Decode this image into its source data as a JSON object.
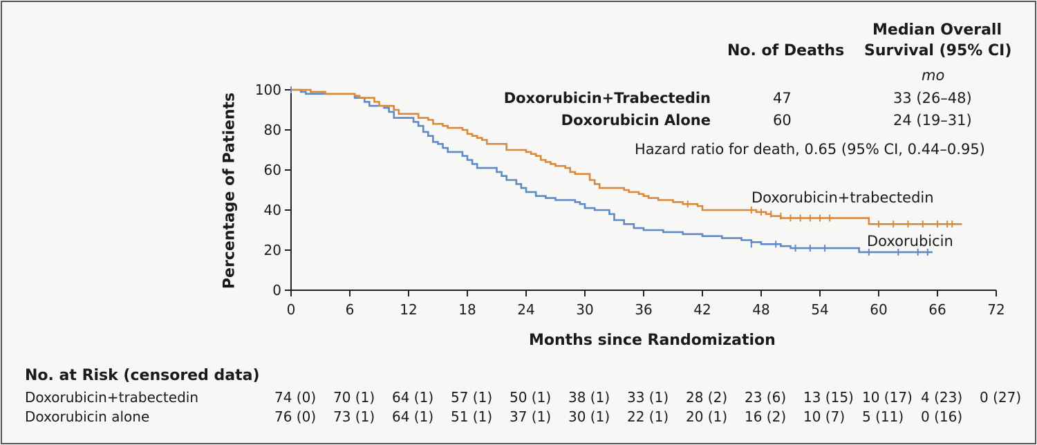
{
  "chart_data": {
    "type": "line",
    "xlabel": "Months since Randomization",
    "ylabel": "Percentage of Patients",
    "xlim": [
      0,
      72
    ],
    "ylim": [
      0,
      100
    ],
    "x_ticks": [
      "0",
      "6",
      "12",
      "18",
      "24",
      "30",
      "36",
      "42",
      "48",
      "54",
      "60",
      "66",
      "72"
    ],
    "y_ticks": [
      "0",
      "20",
      "40",
      "60",
      "80",
      "100"
    ],
    "series": [
      {
        "name": "Doxorubicin+trabectedin",
        "color": "#d8893a",
        "points": [
          [
            0,
            100
          ],
          [
            2,
            99
          ],
          [
            3.5,
            98
          ],
          [
            6.5,
            97
          ],
          [
            7,
            96
          ],
          [
            8.5,
            94
          ],
          [
            9,
            92
          ],
          [
            10.5,
            90
          ],
          [
            11,
            88
          ],
          [
            13,
            86
          ],
          [
            14,
            85
          ],
          [
            14.5,
            83
          ],
          [
            15.5,
            82
          ],
          [
            16,
            81
          ],
          [
            17.5,
            80
          ],
          [
            18,
            78
          ],
          [
            18.5,
            77
          ],
          [
            19,
            76
          ],
          [
            19.5,
            75
          ],
          [
            20,
            73
          ],
          [
            21.5,
            73
          ],
          [
            22,
            70
          ],
          [
            24,
            69
          ],
          [
            24.5,
            68
          ],
          [
            25,
            67
          ],
          [
            25.5,
            65
          ],
          [
            26,
            64
          ],
          [
            26.5,
            63
          ],
          [
            27,
            62
          ],
          [
            28,
            61
          ],
          [
            28.5,
            59
          ],
          [
            29,
            58
          ],
          [
            30.5,
            55
          ],
          [
            31,
            53
          ],
          [
            31.5,
            51
          ],
          [
            34,
            50
          ],
          [
            34.5,
            49
          ],
          [
            35.5,
            48
          ],
          [
            36,
            47
          ],
          [
            36.5,
            46
          ],
          [
            37.5,
            45
          ],
          [
            39,
            44
          ],
          [
            40,
            43
          ],
          [
            41.5,
            42
          ],
          [
            42,
            40
          ],
          [
            47.5,
            39
          ],
          [
            48.5,
            38
          ],
          [
            49,
            37
          ],
          [
            50,
            36
          ],
          [
            59,
            33
          ],
          [
            68.5,
            33
          ]
        ],
        "censored": [
          [
            40.5,
            43
          ],
          [
            47,
            40
          ],
          [
            48,
            39
          ],
          [
            49,
            38
          ],
          [
            50,
            37
          ],
          [
            51,
            36
          ],
          [
            52,
            36
          ],
          [
            53,
            36
          ],
          [
            54,
            36
          ],
          [
            55,
            36
          ],
          [
            60,
            33
          ],
          [
            61.5,
            33
          ],
          [
            63,
            33
          ],
          [
            64.5,
            33
          ],
          [
            66,
            33
          ],
          [
            67,
            33
          ],
          [
            67.5,
            33
          ]
        ]
      },
      {
        "name": "Doxorubicin",
        "color": "#5f89c6",
        "points": [
          [
            0,
            100
          ],
          [
            1,
            99
          ],
          [
            1.5,
            98
          ],
          [
            6.5,
            96
          ],
          [
            7.5,
            94
          ],
          [
            8,
            92
          ],
          [
            9.5,
            91
          ],
          [
            10,
            89
          ],
          [
            10.5,
            86
          ],
          [
            12.5,
            84
          ],
          [
            13,
            82
          ],
          [
            13.5,
            79
          ],
          [
            14,
            77
          ],
          [
            14.5,
            74
          ],
          [
            15,
            73
          ],
          [
            15.5,
            71
          ],
          [
            16,
            69
          ],
          [
            17.5,
            67
          ],
          [
            18,
            65
          ],
          [
            18.5,
            63
          ],
          [
            19,
            61
          ],
          [
            21,
            59
          ],
          [
            21.5,
            57
          ],
          [
            22,
            55
          ],
          [
            23,
            53
          ],
          [
            23.5,
            51
          ],
          [
            24,
            49
          ],
          [
            25,
            47
          ],
          [
            26,
            46
          ],
          [
            27,
            45
          ],
          [
            29,
            44
          ],
          [
            29.5,
            43
          ],
          [
            30,
            41
          ],
          [
            31,
            40
          ],
          [
            32.5,
            38
          ],
          [
            33,
            35
          ],
          [
            34,
            33
          ],
          [
            35,
            31
          ],
          [
            36,
            30
          ],
          [
            38,
            29
          ],
          [
            40,
            28
          ],
          [
            42,
            27
          ],
          [
            44,
            26
          ],
          [
            46,
            25
          ],
          [
            47,
            24
          ],
          [
            48,
            23
          ],
          [
            50,
            22
          ],
          [
            51,
            21
          ],
          [
            58,
            19
          ],
          [
            65.5,
            19
          ]
        ],
        "censored": [
          [
            0,
            100
          ],
          [
            47,
            23
          ],
          [
            49.5,
            23
          ],
          [
            51.5,
            21
          ],
          [
            53,
            21
          ],
          [
            54.5,
            21
          ],
          [
            59,
            19
          ],
          [
            62,
            19
          ],
          [
            64,
            19
          ],
          [
            65,
            19
          ]
        ]
      }
    ],
    "series_labels": [
      "Doxorubicin+trabectedin",
      "Doxorubicin"
    ]
  },
  "summary": {
    "col_deaths": "No. of Deaths",
    "col_median_line1": "Median Overall",
    "col_median_line2": "Survival (95% CI)",
    "unit": "mo",
    "rows": [
      {
        "name": "Doxorubicin+Trabectedin",
        "deaths": "47",
        "median": "33 (26–48)"
      },
      {
        "name": "Doxorubicin Alone",
        "deaths": "60",
        "median": "24 (19–31)"
      }
    ],
    "hazard_ratio": "Hazard ratio for death, 0.65 (95% CI, 0.44–0.95)"
  },
  "risk_table": {
    "title": "No. at Risk (censored data)",
    "rows": [
      {
        "label": "Doxorubicin+trabectedin",
        "values": [
          "74 (0)",
          "70 (1)",
          "64 (1)",
          "57 (1)",
          "50 (1)",
          "38 (1)",
          "33 (1)",
          "28 (2)",
          "23 (6)",
          "13 (15)",
          "10 (17)",
          "4 (23)",
          "0 (27)"
        ]
      },
      {
        "label": "Doxorubicin alone",
        "values": [
          "76 (0)",
          "73 (1)",
          "64 (1)",
          "51 (1)",
          "37 (1)",
          "30 (1)",
          "22 (1)",
          "20 (1)",
          "16 (2)",
          "10 (7)",
          "5 (11)",
          "0 (16)"
        ]
      }
    ]
  }
}
